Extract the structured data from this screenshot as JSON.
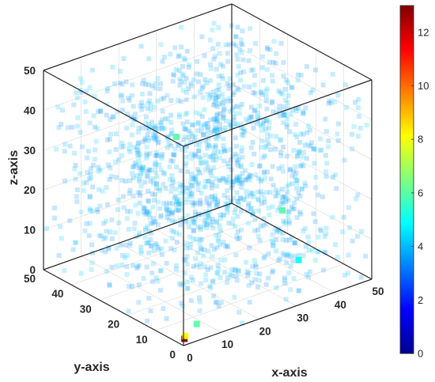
{
  "chart_data": {
    "type": "scatter",
    "subtype": "3d-voxel-cluster",
    "title": "",
    "xlabel": "x-axis",
    "ylabel": "y-axis",
    "zlabel": "z-axis",
    "xlim": [
      0,
      50
    ],
    "ylim": [
      0,
      50
    ],
    "zlim": [
      0,
      50
    ],
    "x_ticks": [
      "0",
      "10",
      "20",
      "30",
      "40",
      "50"
    ],
    "y_ticks": [
      "0",
      "10",
      "20",
      "30",
      "40",
      "50"
    ],
    "z_ticks": [
      "0",
      "10",
      "20",
      "30",
      "40",
      "50"
    ],
    "grid": true,
    "box": true,
    "colorbar": {
      "colormap": "jet",
      "range": [
        0,
        13
      ],
      "ticks": [
        "0",
        "2",
        "4",
        "6",
        "8",
        "10",
        "12"
      ],
      "location": "right"
    },
    "highlighted_points": [
      {
        "x": 1,
        "y": 1,
        "z": 1,
        "value": 13
      },
      {
        "x": 2,
        "y": 2,
        "z": 1,
        "value": 8
      },
      {
        "x": 5,
        "y": 2,
        "z": 3,
        "value": 6
      },
      {
        "x": 4,
        "y": 8,
        "z": 48,
        "value": 6
      },
      {
        "x": 30,
        "y": 5,
        "z": 22,
        "value": 6
      },
      {
        "x": 38,
        "y": 10,
        "z": 5,
        "value": 5
      }
    ]
  }
}
